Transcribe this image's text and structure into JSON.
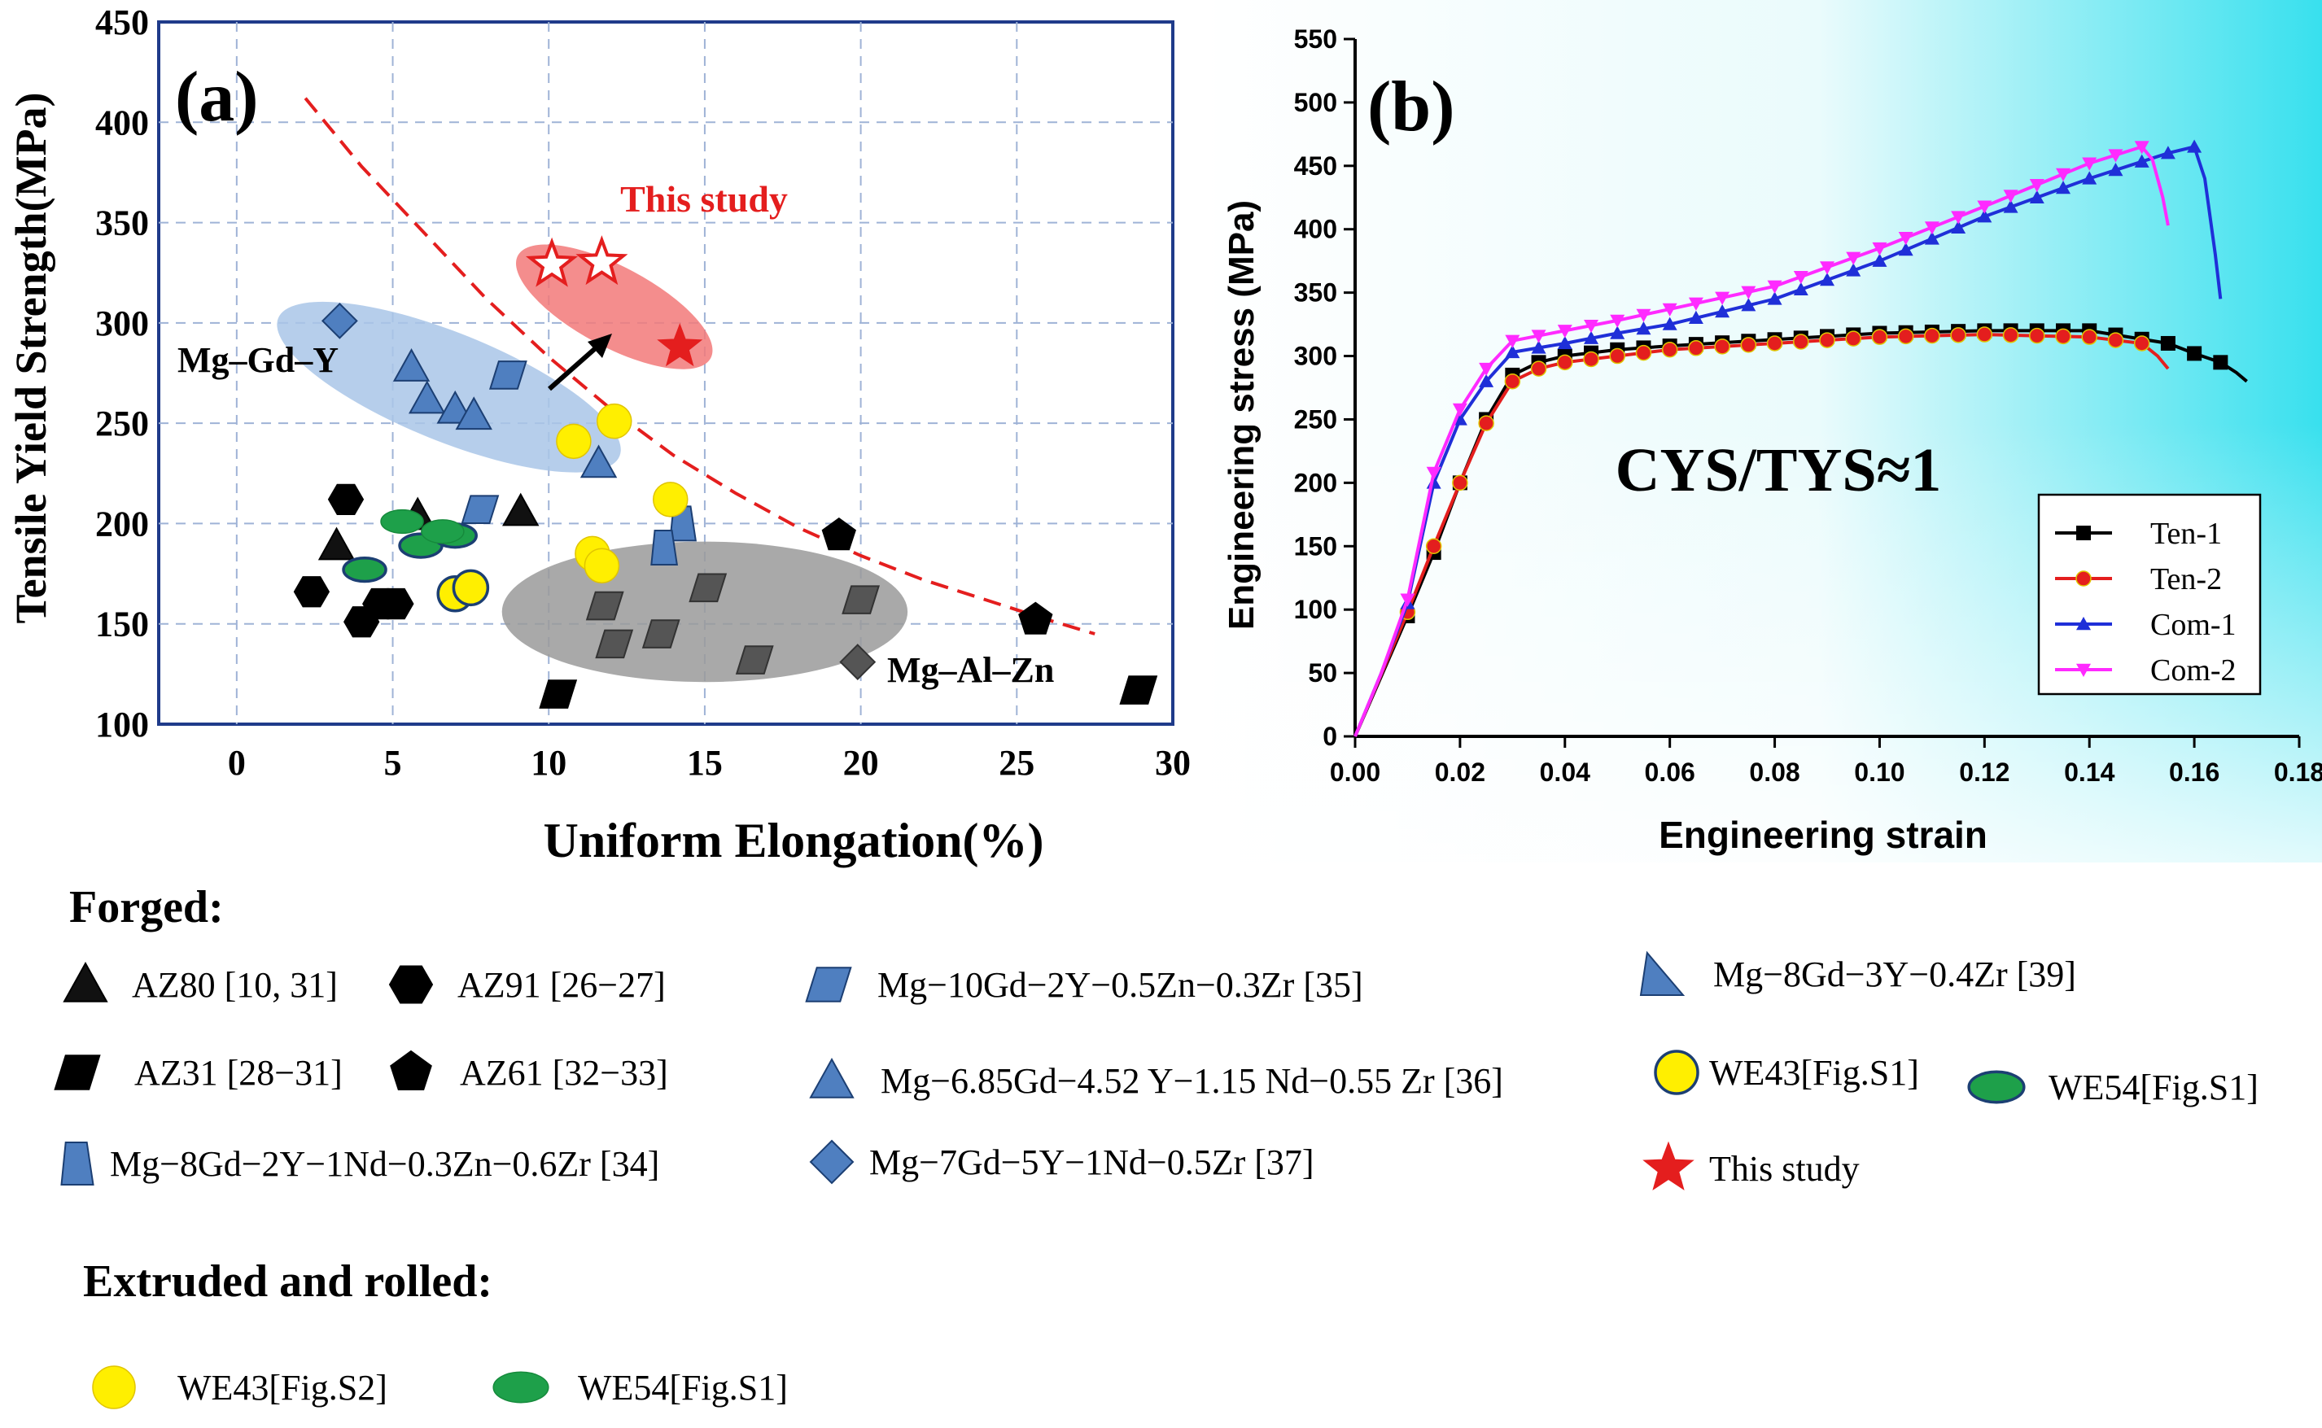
{
  "chart_data": [
    {
      "panel": "(a)",
      "type": "scatter",
      "xlabel": "Uniform Elongation(%)",
      "ylabel": "Tensile Yield Strength(MPa)",
      "xlim": [
        -2.5,
        30
      ],
      "ylim": [
        100,
        450
      ],
      "xticks": [
        0,
        5,
        10,
        15,
        20,
        25,
        30
      ],
      "yticks": [
        100,
        150,
        200,
        250,
        300,
        350,
        400,
        450
      ],
      "grid": true,
      "annotations": {
        "this_study": "This study",
        "mg_gd_y": "Mg–Gd–Y",
        "mg_al_zn": "Mg–Al–Zn"
      },
      "trend_curve": [
        [
          2.2,
          412
        ],
        [
          4,
          378
        ],
        [
          6,
          345
        ],
        [
          8,
          312
        ],
        [
          10,
          283
        ],
        [
          12,
          257
        ],
        [
          14,
          234
        ],
        [
          16,
          215
        ],
        [
          18,
          198
        ],
        [
          20,
          184
        ],
        [
          22,
          172
        ],
        [
          24,
          162
        ],
        [
          26,
          152
        ],
        [
          27.5,
          145
        ]
      ],
      "regions": [
        {
          "name": "Mg-Gd-Y",
          "color": "#a9c5e8",
          "cx": 6.8,
          "cy": 268,
          "rx": 5.9,
          "ry": 27,
          "angle": 22
        },
        {
          "name": "This study",
          "color": "#f27979",
          "cx": 12.1,
          "cy": 308,
          "rx": 3.5,
          "ry": 20,
          "angle": 28
        },
        {
          "name": "Mg-Al-Zn",
          "color": "#9a9a9a",
          "cx": 15,
          "cy": 156,
          "rx": 6.5,
          "ry": 35,
          "angle": 0
        }
      ],
      "points": [
        {
          "group": "Mg-7Gd-5Y-1Nd-0.5Zr [37]",
          "shape": "diamond",
          "color": "#4f7fc0",
          "data": [
            [
              3.3,
              301
            ]
          ]
        },
        {
          "group": "Mg-6.85Gd-4.52Y-1.15Nd-0.55Zr [36]",
          "shape": "triangle",
          "color": "#4f7fc0",
          "data": [
            [
              5.6,
              278
            ],
            [
              6.1,
              262
            ],
            [
              7.0,
              257
            ],
            [
              7.6,
              254
            ],
            [
              11.6,
              230
            ]
          ]
        },
        {
          "group": "Mg-10Gd-2Y-0.5Zn-0.3Zr [35]",
          "shape": "parallelogram",
          "color": "#4f7fc0",
          "data": [
            [
              8.7,
              274
            ],
            [
              7.8,
              207
            ]
          ]
        },
        {
          "group": "Mg-8Gd-2Y-1Nd-0.3Zn-0.6Zr [34]",
          "shape": "trapezoid",
          "color": "#4f7fc0",
          "data": [
            [
              14.3,
              200
            ],
            [
              13.7,
              188
            ]
          ]
        },
        {
          "group": "AZ80 [10, 31]",
          "shape": "triangle",
          "color": "#111111",
          "data": [
            [
              5.8,
              204
            ],
            [
              9.1,
              206
            ],
            [
              3.2,
              189
            ]
          ]
        },
        {
          "group": "AZ91 [26-27]",
          "shape": "hexagon",
          "color": "#000000",
          "data": [
            [
              3.5,
              212
            ],
            [
              2.4,
              166
            ],
            [
              4.0,
              151
            ],
            [
              4.6,
              160
            ],
            [
              5.1,
              160
            ]
          ]
        },
        {
          "group": "AZ61 [32-33]",
          "shape": "pentagon",
          "color": "#000000",
          "data": [
            [
              19.3,
              194
            ],
            [
              25.6,
              152
            ]
          ]
        },
        {
          "group": "AZ31 [28-31]",
          "shape": "parallelogram",
          "color": "#000000",
          "data": [
            [
              10.3,
              115
            ],
            [
              28.9,
              117
            ]
          ]
        },
        {
          "group": "Mg-Al-Zn grey",
          "shape": "parallelogram",
          "color": "#555555",
          "data": [
            [
              11.8,
              159
            ],
            [
              12.1,
              140
            ],
            [
              13.6,
              145
            ],
            [
              15.1,
              168
            ],
            [
              16.6,
              132
            ],
            [
              20.0,
              162
            ]
          ]
        },
        {
          "group": "Mg-Al-Zn grey diamond",
          "shape": "diamond",
          "color": "#555555",
          "data": [
            [
              19.9,
              131
            ]
          ]
        },
        {
          "group": "WE43[Fig.S1]",
          "shape": "circle-outline",
          "color": "#ffef00",
          "data": [
            [
              7.0,
              165
            ],
            [
              7.5,
              168
            ]
          ]
        },
        {
          "group": "WE43[Fig.S2]",
          "shape": "circle",
          "color": "#ffef00",
          "data": [
            [
              10.8,
              241
            ],
            [
              12.1,
              251
            ],
            [
              13.9,
              212
            ],
            [
              11.4,
              185
            ],
            [
              11.7,
              179
            ]
          ]
        },
        {
          "group": "WE54[Fig.S1]",
          "shape": "ellipse-outline",
          "color": "#1ea04a",
          "data": [
            [
              4.1,
              177
            ],
            [
              5.9,
              189
            ],
            [
              7.0,
              194
            ]
          ]
        },
        {
          "group": "WE54[Fig.S1] extruded",
          "shape": "ellipse",
          "color": "#1ea04a",
          "data": [
            [
              5.3,
              201
            ],
            [
              6.6,
              196
            ]
          ]
        },
        {
          "group": "This study",
          "shape": "star",
          "color": "#e41e1e",
          "data": [
            [
              14.2,
              288
            ]
          ]
        },
        {
          "group": "This study (outline)",
          "shape": "star-outline",
          "color": "#e41e1e",
          "data": [
            [
              10.1,
              329
            ],
            [
              11.7,
              330
            ]
          ]
        }
      ]
    },
    {
      "panel": "(b)",
      "type": "line",
      "xlabel": "Engineering strain",
      "ylabel": "Engineering stress (MPa)",
      "xlim": [
        0,
        0.18
      ],
      "ylim": [
        0,
        550
      ],
      "xticks": [
        "0.00",
        "0.02",
        "0.04",
        "0.06",
        "0.08",
        "0.10",
        "0.12",
        "0.14",
        "0.16",
        "0.18"
      ],
      "yticks": [
        "0",
        "50",
        "100",
        "150",
        "200",
        "250",
        "300",
        "350",
        "400",
        "450",
        "500",
        "550"
      ],
      "annotation": "CYS/TYS≈1",
      "legend_position": "bottom-right",
      "series": [
        {
          "name": "Ten-1",
          "color": "#000000",
          "marker": "square",
          "x": [
            0,
            0.01,
            0.015,
            0.02,
            0.025,
            0.03,
            0.035,
            0.04,
            0.05,
            0.06,
            0.08,
            0.1,
            0.12,
            0.14,
            0.155,
            0.16,
            0.165,
            0.168,
            0.17
          ],
          "y": [
            0,
            95,
            145,
            200,
            250,
            285,
            295,
            300,
            305,
            308,
            313,
            318,
            320,
            320,
            310,
            302,
            295,
            287,
            280
          ]
        },
        {
          "name": "Ten-2",
          "color": "#e41e1e",
          "marker": "circle",
          "x": [
            0,
            0.01,
            0.015,
            0.02,
            0.025,
            0.03,
            0.035,
            0.04,
            0.05,
            0.06,
            0.08,
            0.1,
            0.12,
            0.14,
            0.15,
            0.153,
            0.155
          ],
          "y": [
            0,
            98,
            150,
            200,
            247,
            280,
            290,
            295,
            300,
            305,
            310,
            315,
            317,
            315,
            310,
            300,
            290
          ]
        },
        {
          "name": "Com-1",
          "color": "#1f2fd8",
          "marker": "triangle-up",
          "x": [
            0,
            0.005,
            0.01,
            0.015,
            0.02,
            0.025,
            0.03,
            0.04,
            0.05,
            0.06,
            0.08,
            0.1,
            0.12,
            0.14,
            0.155,
            0.16,
            0.162,
            0.164,
            0.165
          ],
          "y": [
            0,
            50,
            105,
            200,
            250,
            280,
            303,
            310,
            318,
            325,
            345,
            375,
            410,
            440,
            460,
            465,
            440,
            380,
            345
          ]
        },
        {
          "name": "Com-2",
          "color": "#ff2aff",
          "marker": "triangle-down",
          "x": [
            0,
            0.005,
            0.01,
            0.015,
            0.02,
            0.025,
            0.03,
            0.04,
            0.05,
            0.06,
            0.08,
            0.1,
            0.12,
            0.14,
            0.15,
            0.152,
            0.154,
            0.155
          ],
          "y": [
            0,
            50,
            108,
            208,
            258,
            290,
            312,
            320,
            328,
            337,
            355,
            385,
            418,
            452,
            465,
            455,
            425,
            403
          ]
        }
      ]
    }
  ],
  "legend": {
    "forged_title": "Forged:",
    "extruded_title": "Extruded and rolled:",
    "entries": [
      {
        "label": "AZ80 [10, 31]",
        "shape": "triangle",
        "color": "#111111"
      },
      {
        "label": "AZ91 [26−27]",
        "shape": "hexagon",
        "color": "#000000"
      },
      {
        "label": "Mg−10Gd−2Y−0.5Zn−0.3Zr [35]",
        "shape": "parallelogram",
        "color": "#4f7fc0"
      },
      {
        "label": "Mg−8Gd−3Y−0.4Zr [39]",
        "shape": "right-triangle",
        "color": "#4f7fc0"
      },
      {
        "label": "AZ31 [28−31]",
        "shape": "parallelogram",
        "color": "#000000"
      },
      {
        "label": "AZ61 [32−33]",
        "shape": "pentagon",
        "color": "#000000"
      },
      {
        "label": "Mg−6.85Gd−4.52 Y−1.15 Nd−0.55 Zr [36]",
        "shape": "triangle",
        "color": "#4f7fc0"
      },
      {
        "label": "WE43[Fig.S1]",
        "shape": "circle-outline",
        "color": "#ffef00"
      },
      {
        "label": "WE54[Fig.S1]",
        "shape": "ellipse-outline",
        "color": "#1ea04a"
      },
      {
        "label": "Mg−8Gd−2Y−1Nd−0.3Zn−0.6Zr [34]",
        "shape": "trapezoid",
        "color": "#4f7fc0"
      },
      {
        "label": "Mg−7Gd−5Y−1Nd−0.5Zr [37]",
        "shape": "diamond",
        "color": "#4f7fc0"
      },
      {
        "label": "This study",
        "shape": "star",
        "color": "#e41e1e"
      },
      {
        "label": "WE43[Fig.S2]",
        "shape": "circle",
        "color": "#ffef00"
      },
      {
        "label": "WE54[Fig.S1]",
        "shape": "ellipse",
        "color": "#1ea04a"
      }
    ]
  }
}
